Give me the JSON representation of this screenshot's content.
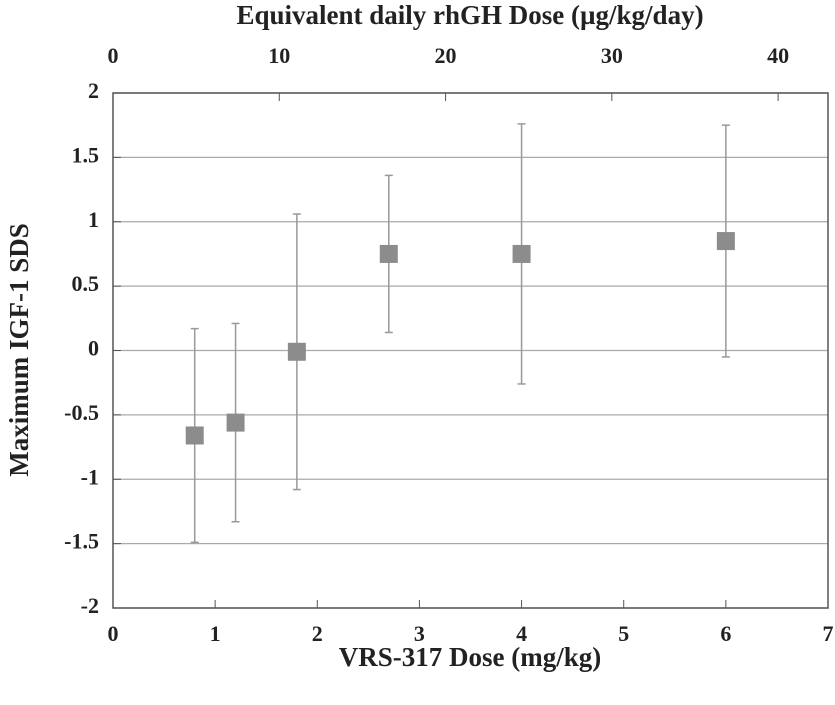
{
  "chart_data": {
    "type": "scatter",
    "xlabel": "VRS-317 Dose (mg/kg)",
    "x2label": "Equivalent daily rhGH Dose (µg/kg/day)",
    "ylabel": "Maximum IGF-1 SDS",
    "x": [
      0.8,
      1.2,
      1.8,
      2.7,
      4.0,
      6.0
    ],
    "values": [
      -0.66,
      -0.56,
      -0.01,
      0.75,
      0.75,
      0.85
    ],
    "errors": [
      0.83,
      0.77,
      1.07,
      0.61,
      1.01,
      0.9
    ],
    "color": "#8c8c8c",
    "xlim": [
      0,
      7
    ],
    "xticks": [
      0,
      1,
      2,
      3,
      4,
      5,
      6,
      7
    ],
    "x2lim": [
      0,
      43
    ],
    "x2ticks": [
      0,
      10,
      20,
      30,
      40
    ],
    "ylim": [
      -2,
      2
    ],
    "yticks": [
      2,
      1.5,
      1,
      0.5,
      0,
      -0.5,
      -1,
      -1.5,
      -2
    ],
    "grid": true
  }
}
